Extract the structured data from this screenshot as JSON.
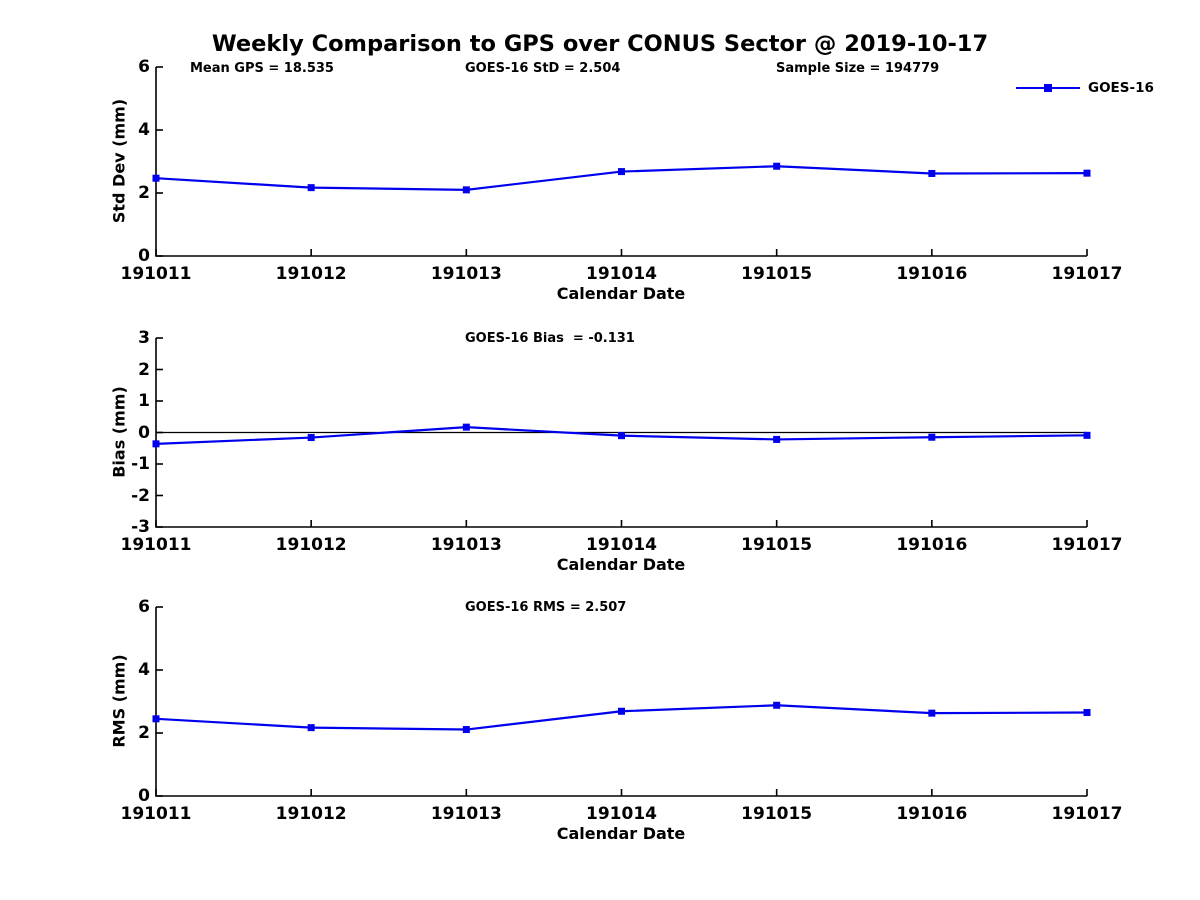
{
  "page": {
    "title": "Weekly Comparison to GPS over CONUS Sector @ 2019-10-17",
    "legend_label": "GOES-16",
    "accent_color": "#0000EE"
  },
  "chart_data": [
    {
      "type": "line",
      "subplot": "std-dev",
      "categories": [
        "191011",
        "191012",
        "191013",
        "191014",
        "191015",
        "191016",
        "191017"
      ],
      "series": [
        {
          "name": "GOES-16",
          "color": "#0000EE",
          "marker": "square",
          "values": [
            2.47,
            2.17,
            2.1,
            2.68,
            2.85,
            2.62,
            2.63
          ]
        }
      ],
      "annotations": [
        "Mean GPS = 18.535",
        "GOES-16 StD = 2.504",
        "Sample Size = 194779"
      ],
      "xlabel": "Calendar Date",
      "ylabel": "Std Dev (mm)",
      "ylim": [
        0,
        6
      ],
      "yticks": [
        "0",
        "2",
        "4",
        "6"
      ],
      "zero_line": false,
      "grid": false,
      "legend_position": "top-right-outside"
    },
    {
      "type": "line",
      "subplot": "bias",
      "categories": [
        "191011",
        "191012",
        "191013",
        "191014",
        "191015",
        "191016",
        "191017"
      ],
      "series": [
        {
          "name": "GOES-16",
          "color": "#0000EE",
          "marker": "square",
          "values": [
            -0.36,
            -0.16,
            0.17,
            -0.1,
            -0.22,
            -0.15,
            -0.09
          ]
        }
      ],
      "annotations": [
        "GOES-16 Bias  = -0.131"
      ],
      "xlabel": "Calendar Date",
      "ylabel": "Bias (mm)",
      "ylim": [
        -3,
        3
      ],
      "yticks": [
        "-3",
        "-2",
        "-1",
        "0",
        "1",
        "2",
        "3"
      ],
      "zero_line": true,
      "grid": false,
      "legend_position": "none"
    },
    {
      "type": "line",
      "subplot": "rms",
      "categories": [
        "191011",
        "191012",
        "191013",
        "191014",
        "191015",
        "191016",
        "191017"
      ],
      "series": [
        {
          "name": "GOES-16",
          "color": "#0000EE",
          "marker": "square",
          "values": [
            2.45,
            2.17,
            2.11,
            2.69,
            2.88,
            2.63,
            2.65
          ]
        }
      ],
      "annotations": [
        "GOES-16 RMS = 2.507"
      ],
      "xlabel": "Calendar Date",
      "ylabel": "RMS (mm)",
      "ylim": [
        0,
        6
      ],
      "yticks": [
        "0",
        "2",
        "4",
        "6"
      ],
      "zero_line": false,
      "grid": false,
      "legend_position": "none"
    }
  ]
}
